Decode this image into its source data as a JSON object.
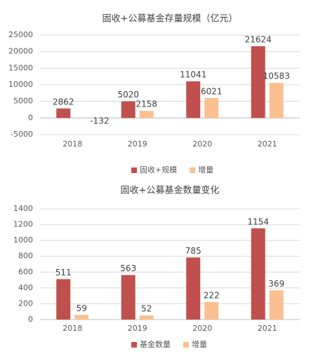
{
  "chart_data": [
    {
      "type": "bar",
      "title": "固收+公募基金存量规模（亿元）",
      "categories": [
        "2018",
        "2019",
        "2020",
        "2021"
      ],
      "series": [
        {
          "name": "固收+规模",
          "color": "#c0504d",
          "values": [
            2862,
            5020,
            11041,
            21624
          ]
        },
        {
          "name": "增量",
          "color": "#fac090",
          "values": [
            -132,
            2158,
            6021,
            10583
          ]
        }
      ],
      "ylim": [
        -5000,
        25000
      ],
      "yticks": [
        -5000,
        0,
        5000,
        10000,
        15000,
        20000,
        25000
      ],
      "grid": true,
      "legend": "bottom"
    },
    {
      "type": "bar",
      "title": "固收+公募基金数量变化",
      "categories": [
        "2018",
        "2019",
        "2020",
        "2021"
      ],
      "series": [
        {
          "name": "基金数量",
          "color": "#c0504d",
          "values": [
            511,
            563,
            785,
            1154
          ]
        },
        {
          "name": "增量",
          "color": "#fac090",
          "values": [
            59,
            52,
            222,
            369
          ]
        }
      ],
      "ylim": [
        0,
        1400
      ],
      "yticks": [
        0,
        200,
        400,
        600,
        800,
        1000,
        1200,
        1400
      ],
      "grid": true,
      "legend": "bottom"
    }
  ]
}
